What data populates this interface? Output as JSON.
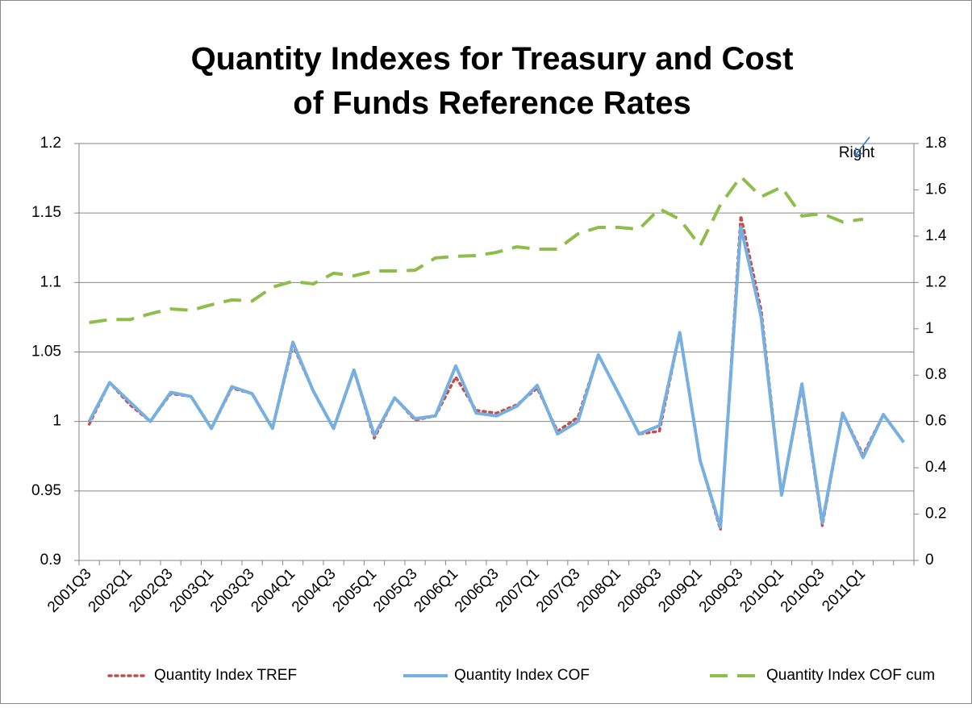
{
  "chart_data": {
    "type": "line",
    "title": "Quantity Indexes for Treasury and Cost of Funds Reference Rates",
    "annotation": "Right",
    "categories": [
      "2001Q3",
      null,
      "2002Q1",
      null,
      "2002Q3",
      null,
      "2003Q1",
      null,
      "2003Q3",
      null,
      "2004Q1",
      null,
      "2004Q3",
      null,
      "2005Q1",
      null,
      "2005Q3",
      null,
      "2006Q1",
      null,
      "2006Q3",
      null,
      "2007Q1",
      null,
      "2007Q3",
      null,
      "2008Q1",
      null,
      "2008Q3",
      null,
      "2009Q1",
      null,
      "2009Q3",
      null,
      "2010Q1",
      null,
      "2010Q3",
      null,
      "2011Q1",
      null,
      null
    ],
    "series": [
      {
        "name": "Quantity Index TREF",
        "color": "#c0504d",
        "style": "dotted",
        "values": [
          0.998,
          1.028,
          1.012,
          1.0,
          1.02,
          1.018,
          0.995,
          1.024,
          1.02,
          0.995,
          1.055,
          1.022,
          0.995,
          1.037,
          0.988,
          1.017,
          1.001,
          1.004,
          1.032,
          1.008,
          1.006,
          1.012,
          1.024,
          0.993,
          1.003,
          1.048,
          1.02,
          0.991,
          0.993,
          1.064,
          0.972,
          0.922,
          1.148,
          1.08,
          0.947,
          1.025,
          0.925,
          1.006,
          0.976,
          1.005,
          0.985
        ]
      },
      {
        "name": "Quantity Index COF",
        "color": "#77b0e0",
        "style": "solid",
        "values": [
          1.0,
          1.028,
          1.014,
          1.0,
          1.021,
          1.018,
          0.995,
          1.025,
          1.02,
          0.995,
          1.057,
          1.022,
          0.995,
          1.037,
          0.99,
          1.017,
          1.002,
          1.004,
          1.04,
          1.006,
          1.004,
          1.011,
          1.026,
          0.991,
          1.0,
          1.048,
          1.02,
          0.991,
          0.997,
          1.064,
          0.972,
          0.924,
          1.14,
          1.075,
          0.947,
          1.027,
          0.927,
          1.006,
          0.974,
          1.005,
          0.985
        ]
      },
      {
        "name": "Quantity Index COF cum",
        "color": "#8ebe4a",
        "style": "dashed",
        "axis": "y2",
        "values": [
          1.027,
          1.04,
          1.04,
          1.065,
          1.086,
          1.08,
          1.104,
          1.125,
          1.12,
          1.18,
          1.205,
          1.194,
          1.24,
          1.229,
          1.25,
          1.25,
          1.253,
          1.306,
          1.313,
          1.316,
          1.33,
          1.354,
          1.344,
          1.344,
          1.41,
          1.438,
          1.438,
          1.43,
          1.518,
          1.473,
          1.358,
          1.536,
          1.657,
          1.57,
          1.612,
          1.487,
          1.497,
          1.462,
          1.473,
          null,
          null
        ]
      }
    ],
    "ylim": [
      0.9,
      1.2
    ],
    "yticks": [
      0.9,
      0.95,
      1,
      1.05,
      1.1,
      1.15,
      1.2
    ],
    "y2lim": [
      0,
      1.8
    ],
    "y2ticks": [
      0,
      0.2,
      0.4,
      0.6,
      0.8,
      1,
      1.2,
      1.4,
      1.6,
      1.8
    ],
    "grid": true,
    "legend": "bottom"
  }
}
